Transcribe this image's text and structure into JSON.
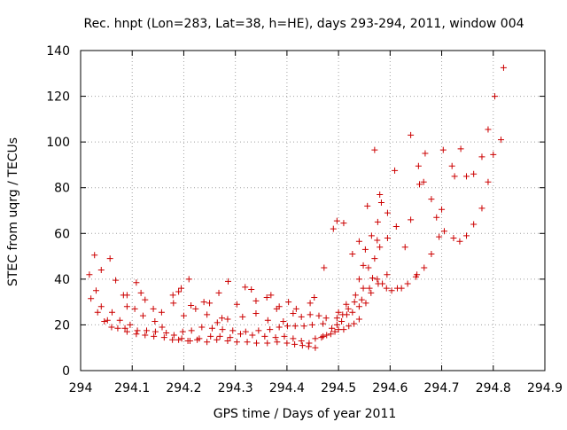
{
  "chart_data": {
    "type": "scatter",
    "title": "Rec. hnpt (Lon=283, Lat=38, h=HE), days 293-294, 2011, window 004",
    "xlabel": "GPS time / Days of year 2011",
    "ylabel": "STEC from uqrg / TECUs",
    "xlim": [
      294,
      294.9
    ],
    "ylim": [
      0,
      140
    ],
    "xticks": [
      "294",
      "294.1",
      "294.2",
      "294.3",
      "294.4",
      "294.5",
      "294.6",
      "294.7",
      "294.8",
      "294.9"
    ],
    "xtick_values": [
      294,
      294.1,
      294.2,
      294.3,
      294.4,
      294.5,
      294.6,
      294.7,
      294.8,
      294.9
    ],
    "yticks": [
      "0",
      "20",
      "40",
      "60",
      "80",
      "100",
      "120",
      "140"
    ],
    "ytick_values": [
      0,
      20,
      40,
      60,
      80,
      100,
      120,
      140
    ],
    "grid": true,
    "marker": "+",
    "color": "#cc0000",
    "points": [
      [
        294.017,
        42
      ],
      [
        294.027,
        50.5
      ],
      [
        294.04,
        44
      ],
      [
        294.057,
        49
      ],
      [
        294.083,
        33
      ],
      [
        294.125,
        31
      ],
      [
        294.157,
        25.5
      ],
      [
        294.19,
        34.5
      ],
      [
        294.21,
        40
      ],
      [
        294.239,
        30
      ],
      [
        294.268,
        34
      ],
      [
        294.286,
        39
      ],
      [
        294.319,
        36.5
      ],
      [
        294.331,
        35.5
      ],
      [
        294.361,
        32
      ],
      [
        294.385,
        28
      ],
      [
        294.02,
        31.5
      ],
      [
        294.03,
        35
      ],
      [
        294.04,
        28
      ],
      [
        294.052,
        22
      ],
      [
        294.068,
        39.5
      ],
      [
        294.09,
        33
      ],
      [
        294.108,
        38.5
      ],
      [
        294.117,
        34
      ],
      [
        294.141,
        27
      ],
      [
        294.179,
        33
      ],
      [
        294.195,
        36
      ],
      [
        294.214,
        28.5
      ],
      [
        294.25,
        29.5
      ],
      [
        294.274,
        23
      ],
      [
        294.303,
        29
      ],
      [
        294.34,
        30.5
      ],
      [
        294.369,
        33
      ],
      [
        294.403,
        30
      ],
      [
        294.418,
        27
      ],
      [
        294.445,
        29.5
      ],
      [
        294.453,
        32
      ],
      [
        294.472,
        45
      ],
      [
        294.033,
        25.5
      ],
      [
        294.046,
        21.5
      ],
      [
        294.061,
        25.5
      ],
      [
        294.076,
        22
      ],
      [
        294.09,
        28
      ],
      [
        294.105,
        27
      ],
      [
        294.121,
        24
      ],
      [
        294.144,
        21.5
      ],
      [
        294.158,
        19
      ],
      [
        294.18,
        29.5
      ],
      [
        294.2,
        24
      ],
      [
        294.223,
        27
      ],
      [
        294.245,
        24.5
      ],
      [
        294.265,
        21
      ],
      [
        294.285,
        22.5
      ],
      [
        294.314,
        23.5
      ],
      [
        294.34,
        25
      ],
      [
        294.363,
        22
      ],
      [
        294.38,
        27
      ],
      [
        294.393,
        21.5
      ],
      [
        294.412,
        25
      ],
      [
        294.428,
        23.5
      ],
      [
        294.445,
        24.5
      ],
      [
        294.462,
        24
      ],
      [
        294.476,
        23
      ],
      [
        294.06,
        19
      ],
      [
        294.072,
        18.5
      ],
      [
        294.086,
        18.5
      ],
      [
        294.096,
        20
      ],
      [
        294.11,
        17.5
      ],
      [
        294.128,
        17.5
      ],
      [
        294.145,
        17
      ],
      [
        294.166,
        16.5
      ],
      [
        294.181,
        15.5
      ],
      [
        294.198,
        17
      ],
      [
        294.215,
        17.5
      ],
      [
        294.235,
        19
      ],
      [
        294.255,
        18.5
      ],
      [
        294.275,
        18
      ],
      [
        294.295,
        17.5
      ],
      [
        294.32,
        17
      ],
      [
        294.345,
        17.5
      ],
      [
        294.367,
        18
      ],
      [
        294.385,
        19
      ],
      [
        294.401,
        19.5
      ],
      [
        294.416,
        19.5
      ],
      [
        294.433,
        19.5
      ],
      [
        294.449,
        20
      ],
      [
        294.47,
        20.5
      ],
      [
        294.09,
        17
      ],
      [
        294.108,
        16
      ],
      [
        294.125,
        15.5
      ],
      [
        294.142,
        15
      ],
      [
        294.162,
        14.5
      ],
      [
        294.178,
        13.5
      ],
      [
        294.196,
        14
      ],
      [
        294.212,
        13
      ],
      [
        294.23,
        14
      ],
      [
        294.252,
        15
      ],
      [
        294.27,
        15
      ],
      [
        294.29,
        14.5
      ],
      [
        294.31,
        16
      ],
      [
        294.333,
        15.5
      ],
      [
        294.357,
        15
      ],
      [
        294.378,
        14.5
      ],
      [
        294.395,
        15
      ],
      [
        294.412,
        14
      ],
      [
        294.428,
        13
      ],
      [
        294.443,
        12
      ],
      [
        294.455,
        14
      ],
      [
        294.47,
        15
      ],
      [
        294.19,
        13.5
      ],
      [
        294.208,
        13
      ],
      [
        294.226,
        13.5
      ],
      [
        294.245,
        12.5
      ],
      [
        294.264,
        13.5
      ],
      [
        294.285,
        13
      ],
      [
        294.303,
        12.5
      ],
      [
        294.323,
        12.5
      ],
      [
        294.341,
        12
      ],
      [
        294.362,
        12
      ],
      [
        294.381,
        12.5
      ],
      [
        294.4,
        12
      ],
      [
        294.415,
        11.5
      ],
      [
        294.43,
        11
      ],
      [
        294.442,
        10.5
      ],
      [
        294.455,
        10
      ],
      [
        294.467,
        14.5
      ],
      [
        294.477,
        15.5
      ],
      [
        294.485,
        16
      ],
      [
        294.493,
        17
      ],
      [
        294.5,
        18
      ],
      [
        294.51,
        18
      ],
      [
        294.52,
        19.5
      ],
      [
        294.53,
        20.5
      ],
      [
        294.54,
        22.5
      ],
      [
        294.487,
        18.5
      ],
      [
        294.497,
        20
      ],
      [
        294.506,
        21.5
      ],
      [
        294.516,
        24.5
      ],
      [
        294.527,
        25.5
      ],
      [
        294.54,
        28
      ],
      [
        294.553,
        29.5
      ],
      [
        294.563,
        34
      ],
      [
        294.577,
        38
      ],
      [
        294.594,
        42
      ],
      [
        294.497,
        23
      ],
      [
        294.508,
        24.5
      ],
      [
        294.519,
        27
      ],
      [
        294.531,
        30
      ],
      [
        294.545,
        31
      ],
      [
        294.56,
        36
      ],
      [
        294.575,
        40
      ],
      [
        294.593,
        36
      ],
      [
        294.614,
        36
      ],
      [
        294.634,
        38
      ],
      [
        294.65,
        41
      ],
      [
        294.5,
        25.5
      ],
      [
        294.515,
        29
      ],
      [
        294.533,
        33
      ],
      [
        294.548,
        36
      ],
      [
        294.566,
        40.5
      ],
      [
        294.585,
        38
      ],
      [
        294.603,
        35
      ],
      [
        294.622,
        36
      ],
      [
        294.652,
        42
      ],
      [
        294.666,
        45
      ],
      [
        294.68,
        51
      ],
      [
        294.695,
        58.5
      ],
      [
        294.705,
        61
      ],
      [
        294.723,
        58
      ],
      [
        294.735,
        56.5
      ],
      [
        294.748,
        59
      ],
      [
        294.762,
        64
      ],
      [
        294.778,
        71
      ],
      [
        294.79,
        82.5
      ],
      [
        294.8,
        94.5
      ],
      [
        294.815,
        101
      ],
      [
        294.54,
        40
      ],
      [
        294.548,
        46
      ],
      [
        294.558,
        45
      ],
      [
        294.57,
        49
      ],
      [
        294.58,
        54
      ],
      [
        294.595,
        58
      ],
      [
        294.612,
        63
      ],
      [
        294.527,
        51
      ],
      [
        294.54,
        56.5
      ],
      [
        294.552,
        53
      ],
      [
        294.564,
        59
      ],
      [
        294.576,
        65
      ],
      [
        294.583,
        73.5
      ],
      [
        294.595,
        69
      ],
      [
        294.51,
        64.5
      ],
      [
        294.556,
        72
      ],
      [
        294.575,
        57
      ],
      [
        294.58,
        77
      ],
      [
        294.497,
        65.5
      ],
      [
        294.49,
        62
      ],
      [
        294.57,
        96.5
      ],
      [
        294.609,
        87.5
      ],
      [
        294.629,
        54
      ],
      [
        294.64,
        66
      ],
      [
        294.64,
        103
      ],
      [
        294.655,
        89.5
      ],
      [
        294.657,
        81.5
      ],
      [
        294.665,
        82.5
      ],
      [
        294.668,
        95
      ],
      [
        294.68,
        75
      ],
      [
        294.69,
        67
      ],
      [
        294.7,
        70.5
      ],
      [
        294.703,
        96.5
      ],
      [
        294.72,
        89.5
      ],
      [
        294.725,
        85
      ],
      [
        294.737,
        97
      ],
      [
        294.748,
        85
      ],
      [
        294.762,
        86
      ],
      [
        294.778,
        93.5
      ],
      [
        294.79,
        105.5
      ],
      [
        294.803,
        120
      ],
      [
        294.82,
        132.5
      ]
    ]
  }
}
